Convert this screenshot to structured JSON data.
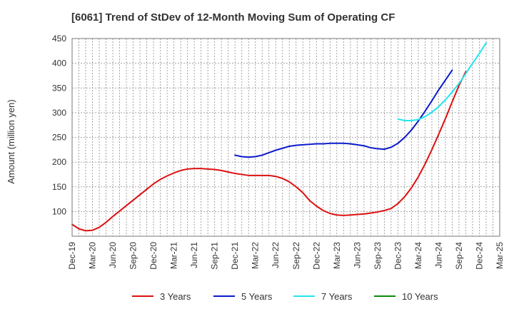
{
  "chart_data": {
    "type": "line",
    "title": "[6061]  Trend of StDev of 12-Month Moving Sum of Operating CF",
    "ylabel": "Amount (million yen)",
    "xlabel": "",
    "ylim": [
      50,
      450
    ],
    "yticks": [
      100,
      150,
      200,
      250,
      300,
      350,
      400,
      450
    ],
    "x_ticks": [
      "Dec-19",
      "Mar-20",
      "Jun-20",
      "Sep-20",
      "Dec-20",
      "Mar-21",
      "Jun-21",
      "Sep-21",
      "Dec-21",
      "Mar-22",
      "Jun-22",
      "Sep-22",
      "Dec-22",
      "Mar-23",
      "Jun-23",
      "Sep-23",
      "Dec-23",
      "Mar-24",
      "Jun-24",
      "Sep-24",
      "Dec-24",
      "Mar-25"
    ],
    "grid": true,
    "legend_position": "bottom",
    "series": [
      {
        "name": "3 Years",
        "color": "#dd1111",
        "start_index": 0,
        "values": [
          74,
          65,
          61,
          62,
          68,
          78,
          90,
          101,
          112,
          123,
          134,
          145,
          156,
          165,
          172,
          178,
          183,
          186,
          187,
          187,
          186,
          185,
          183,
          180,
          177,
          175,
          173,
          173,
          173,
          173,
          171,
          167,
          160,
          150,
          138,
          122,
          111,
          102,
          96,
          93,
          92,
          93,
          94,
          95,
          97,
          99,
          102,
          106,
          116,
          130,
          148,
          170,
          196,
          225,
          256,
          288,
          322,
          355,
          383
        ]
      },
      {
        "name": "5 Years",
        "color": "#0a1acc",
        "start_index": 24,
        "values": [
          214,
          211,
          210,
          211,
          214,
          219,
          224,
          228,
          232,
          234,
          235,
          236,
          237,
          237,
          238,
          238,
          238,
          237,
          235,
          233,
          229,
          227,
          226,
          230,
          238,
          250,
          265,
          283,
          303,
          324,
          346,
          366,
          386
        ]
      },
      {
        "name": "7 Years",
        "color": "#22e6ee",
        "start_index": 48,
        "values": [
          287,
          284,
          284,
          286,
          292,
          301,
          312,
          326,
          342,
          359,
          379,
          400,
          420,
          441
        ]
      },
      {
        "name": "10 Years",
        "color": "#0b8a0b",
        "start_index": 0,
        "values": []
      }
    ]
  }
}
